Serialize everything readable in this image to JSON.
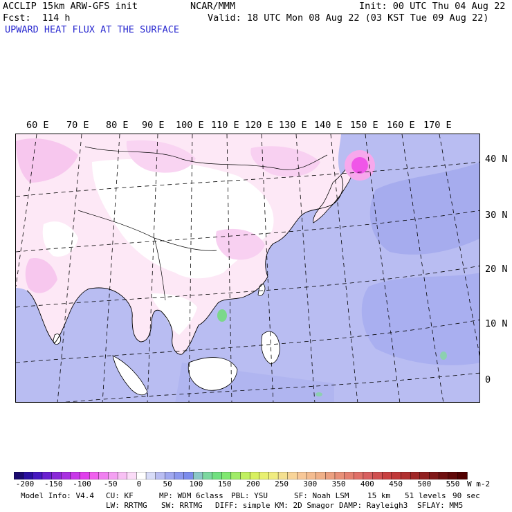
{
  "header": {
    "line1_left": "ACCLIP 15km ARW-GFS init",
    "line1_center": "NCAR/MMM",
    "line1_right": "Init: 00 UTC Thu 04 Aug 22",
    "line2_left": "Fcst:  114 h",
    "line2_right": "Valid: 18 UTC Mon 08 Aug 22 (03 KST Tue 09 Aug 22)",
    "field_title": "UPWARD HEAT FLUX AT THE SURFACE"
  },
  "map": {
    "longitude_labels": [
      "60 E",
      "70 E",
      "80 E",
      "90 E",
      "100 E",
      "110 E",
      "120 E",
      "130 E",
      "140 E",
      "150 E",
      "160 E",
      "170 E"
    ],
    "latitude_labels": [
      "40 N",
      "30 N",
      "20 N",
      "10 N",
      "0"
    ],
    "colors": {
      "ocean_flux": "#b9bdf2",
      "land_low": "#ffffff",
      "land_pink": "#f7c7ee",
      "magenta_peak": "#f055e8",
      "green_spot": "#7bd88a"
    }
  },
  "colorbar": {
    "tick_labels": [
      "-200",
      "-150",
      "-100",
      "-50",
      "0",
      "50",
      "100",
      "150",
      "200",
      "250",
      "300",
      "350",
      "400",
      "450",
      "500",
      "550"
    ],
    "unit": "W m-2",
    "colors": [
      "#1a0a6e",
      "#2a10a0",
      "#4618c0",
      "#6a20d0",
      "#8a28d8",
      "#a830e0",
      "#c838e8",
      "#e040ec",
      "#f060ee",
      "#f080f0",
      "#f4a0f2",
      "#f8c0f4",
      "#fbdcf8",
      "#ffffff",
      "#d8dcf8",
      "#b9bdf2",
      "#a0a8f0",
      "#8c98ee",
      "#7c8cec",
      "#8cc8c8",
      "#7cd8a0",
      "#70e080",
      "#80e870",
      "#a0ec68",
      "#c0f060",
      "#d8f060",
      "#e8f070",
      "#f0ec80",
      "#f4e090",
      "#f8d498",
      "#f8c898",
      "#f4bc90",
      "#f0b088",
      "#eca080",
      "#e89078",
      "#e48070",
      "#e07068",
      "#d86060",
      "#d05050",
      "#c84040",
      "#c03838",
      "#b03030",
      "#a02828",
      "#902020",
      "#801818",
      "#701010",
      "#600808",
      "#500000"
    ]
  },
  "footer": {
    "row1": [
      "Model Info: V4.4",
      "CU: KF",
      "MP: WDM 6class",
      "PBL: YSU",
      "SF: Noah LSM",
      "15 km",
      "51 levels",
      "90 sec"
    ],
    "row2": [
      "LW: RRTMG",
      "SW: RRTMG",
      "DIFF: simple",
      "KM: 2D Smagor",
      "DAMP: Rayleigh3",
      "SFLAY: MM5"
    ]
  }
}
